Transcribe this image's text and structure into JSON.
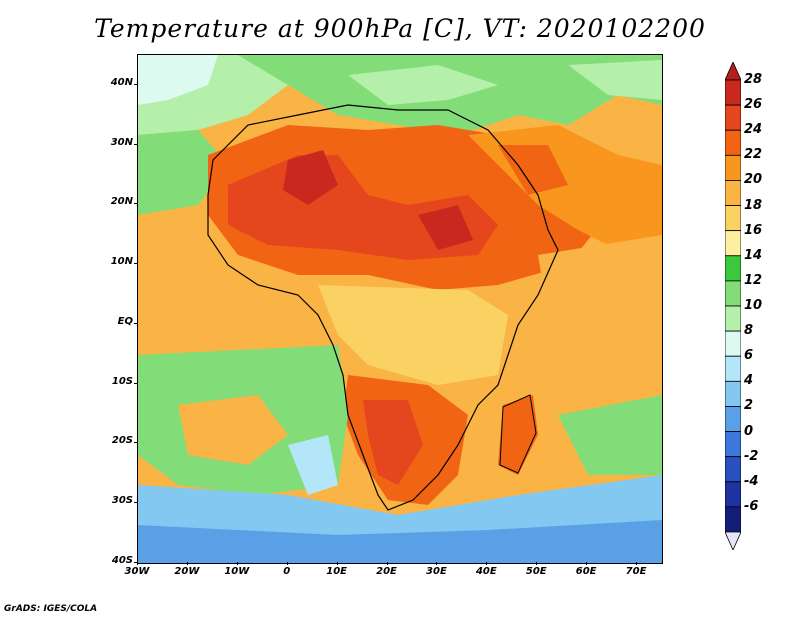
{
  "title": "Temperature at 900hPa [C], VT: 2020102200",
  "credit": "GrADS: IGES/COLA",
  "map": {
    "region": "Africa",
    "lat_range": [
      -40,
      45
    ],
    "lon_range": [
      -30,
      75
    ],
    "lat_ticks": [
      {
        "value": 40,
        "label": "40N"
      },
      {
        "value": 30,
        "label": "30N"
      },
      {
        "value": 20,
        "label": "20N"
      },
      {
        "value": 10,
        "label": "10N"
      },
      {
        "value": 0,
        "label": "EQ"
      },
      {
        "value": -10,
        "label": "10S"
      },
      {
        "value": -20,
        "label": "20S"
      },
      {
        "value": -30,
        "label": "30S"
      },
      {
        "value": -40,
        "label": "40S"
      }
    ],
    "lon_ticks": [
      {
        "value": -30,
        "label": "30W"
      },
      {
        "value": -20,
        "label": "20W"
      },
      {
        "value": -10,
        "label": "10W"
      },
      {
        "value": 0,
        "label": "0"
      },
      {
        "value": 10,
        "label": "10E"
      },
      {
        "value": 20,
        "label": "20E"
      },
      {
        "value": 30,
        "label": "30E"
      },
      {
        "value": 40,
        "label": "40E"
      },
      {
        "value": 50,
        "label": "50E"
      },
      {
        "value": 60,
        "label": "60E"
      },
      {
        "value": 70,
        "label": "70E"
      }
    ]
  },
  "colorbar": {
    "levels": [
      {
        "value": 28,
        "label": "28",
        "color": "#c8281e"
      },
      {
        "value": 26,
        "label": "26",
        "color": "#e6461e"
      },
      {
        "value": 24,
        "label": "24",
        "color": "#f06414"
      },
      {
        "value": 22,
        "label": "22",
        "color": "#f8961e"
      },
      {
        "value": 20,
        "label": "20",
        "color": "#fab446"
      },
      {
        "value": 18,
        "label": "18",
        "color": "#fad264"
      },
      {
        "value": 16,
        "label": "16",
        "color": "#fcf0a0"
      },
      {
        "value": 14,
        "label": "14",
        "color": "#3cc83c"
      },
      {
        "value": 12,
        "label": "12",
        "color": "#82dc78"
      },
      {
        "value": 10,
        "label": "10",
        "color": "#b4f0aa"
      },
      {
        "value": 8,
        "label": "8",
        "color": "#dcfaf0"
      },
      {
        "value": 6,
        "label": "6",
        "color": "#b4e6fa"
      },
      {
        "value": 4,
        "label": "4",
        "color": "#82c8f0"
      },
      {
        "value": 2,
        "label": "2",
        "color": "#5aa0e6"
      },
      {
        "value": 0,
        "label": "0",
        "color": "#3c78dc"
      },
      {
        "value": -2,
        "label": "-2",
        "color": "#2850be"
      },
      {
        "value": -4,
        "label": "-4",
        "color": "#1e32a0"
      },
      {
        "value": -6,
        "label": "-6",
        "color": "#141e78"
      }
    ],
    "top_color": "#b41e1e",
    "bottom_color": "#e6e6fa"
  }
}
